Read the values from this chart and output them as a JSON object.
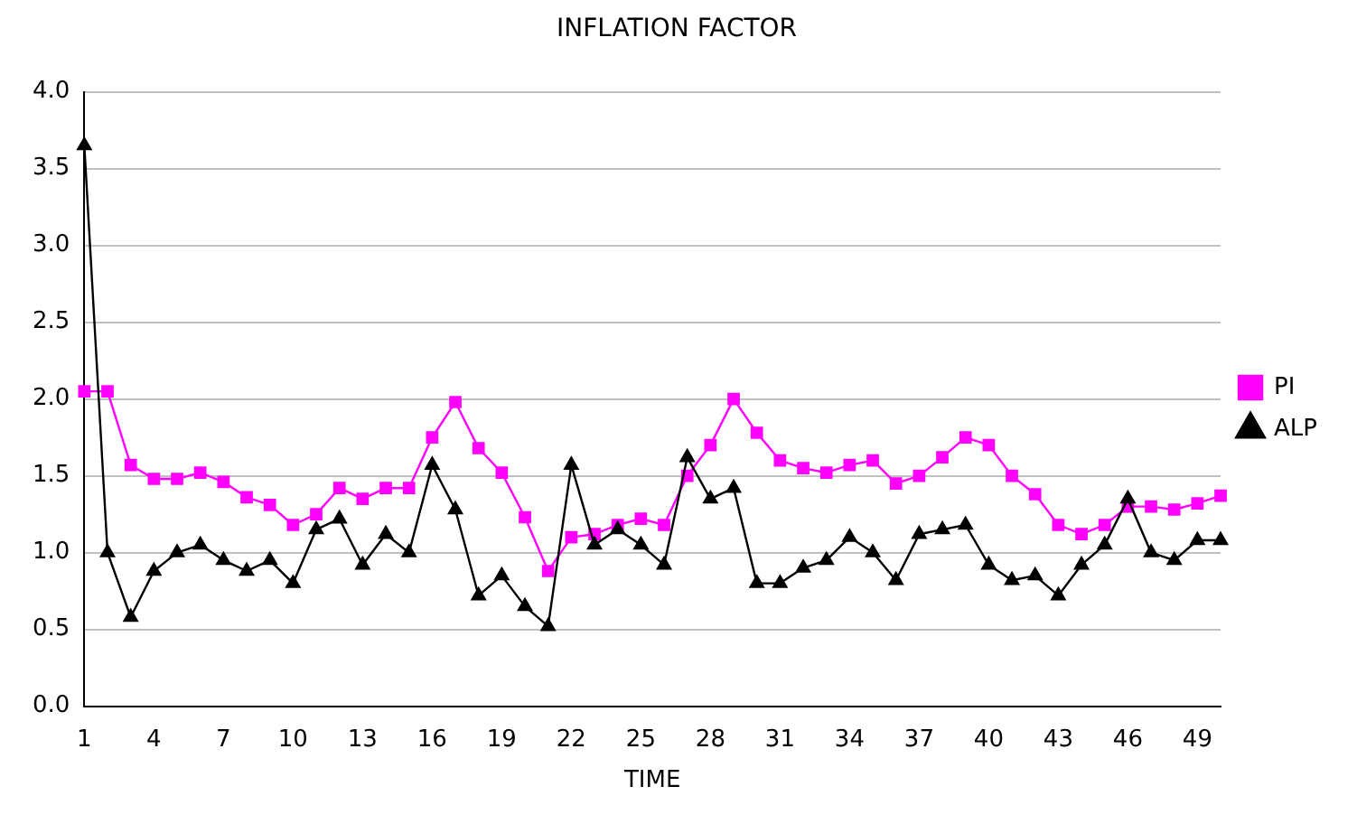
{
  "chart_data": {
    "type": "line",
    "title": "INFLATION FACTOR",
    "xlabel": "TIME",
    "categories": [
      "1",
      null,
      null,
      "4",
      null,
      null,
      "7",
      null,
      null,
      "10",
      null,
      null,
      "13",
      null,
      null,
      "16",
      null,
      null,
      "19",
      null,
      null,
      "22",
      null,
      null,
      "25",
      null,
      null,
      "28",
      null,
      null,
      "31",
      null,
      null,
      "34",
      null,
      null,
      "37",
      null,
      null,
      "40",
      null,
      null,
      "43",
      null,
      null,
      "46",
      null,
      null,
      "49",
      null
    ],
    "series": [
      {
        "name": "PI",
        "color": "#ff00ff",
        "marker": "square",
        "values": [
          2.05,
          2.05,
          1.57,
          1.48,
          1.48,
          1.52,
          1.46,
          1.36,
          1.31,
          1.18,
          1.25,
          1.42,
          1.35,
          1.42,
          1.42,
          1.75,
          1.98,
          1.68,
          1.52,
          1.23,
          0.88,
          1.1,
          1.12,
          1.18,
          1.22,
          1.18,
          1.5,
          1.7,
          2.0,
          1.78,
          1.6,
          1.55,
          1.52,
          1.57,
          1.6,
          1.45,
          1.5,
          1.62,
          1.75,
          1.7,
          1.5,
          1.38,
          1.18,
          1.12,
          1.18,
          1.3,
          1.3,
          1.28,
          1.32,
          1.37
        ]
      },
      {
        "name": "ALP",
        "color": "#000000",
        "marker": "triangle",
        "values": [
          3.65,
          1.0,
          0.58,
          0.88,
          1.0,
          1.05,
          0.95,
          0.88,
          0.95,
          0.8,
          1.15,
          1.22,
          0.92,
          1.12,
          1.0,
          1.57,
          1.28,
          0.72,
          0.85,
          0.65,
          0.52,
          1.57,
          1.05,
          1.15,
          1.05,
          0.92,
          1.62,
          1.35,
          1.42,
          0.8,
          0.8,
          0.9,
          0.95,
          1.1,
          1.0,
          0.82,
          1.12,
          1.15,
          1.18,
          0.92,
          0.82,
          0.85,
          0.72,
          0.92,
          1.05,
          1.35,
          1.0,
          0.95,
          1.08,
          1.08
        ]
      }
    ],
    "ylim": [
      0,
      4
    ],
    "yticks": [
      {
        "value": 0,
        "label": "0.0"
      },
      {
        "value": 0.5,
        "label": "0.5"
      },
      {
        "value": 1,
        "label": "1.0"
      },
      {
        "value": 1.5,
        "label": "1.5"
      },
      {
        "value": 2,
        "label": "2.0"
      },
      {
        "value": 2.5,
        "label": "2.5"
      },
      {
        "value": 3,
        "label": "3.0"
      },
      {
        "value": 3.5,
        "label": "3.5"
      },
      {
        "value": 4,
        "label": "4.0"
      }
    ],
    "grid": "y",
    "legend": "right",
    "line_style": "solid"
  }
}
